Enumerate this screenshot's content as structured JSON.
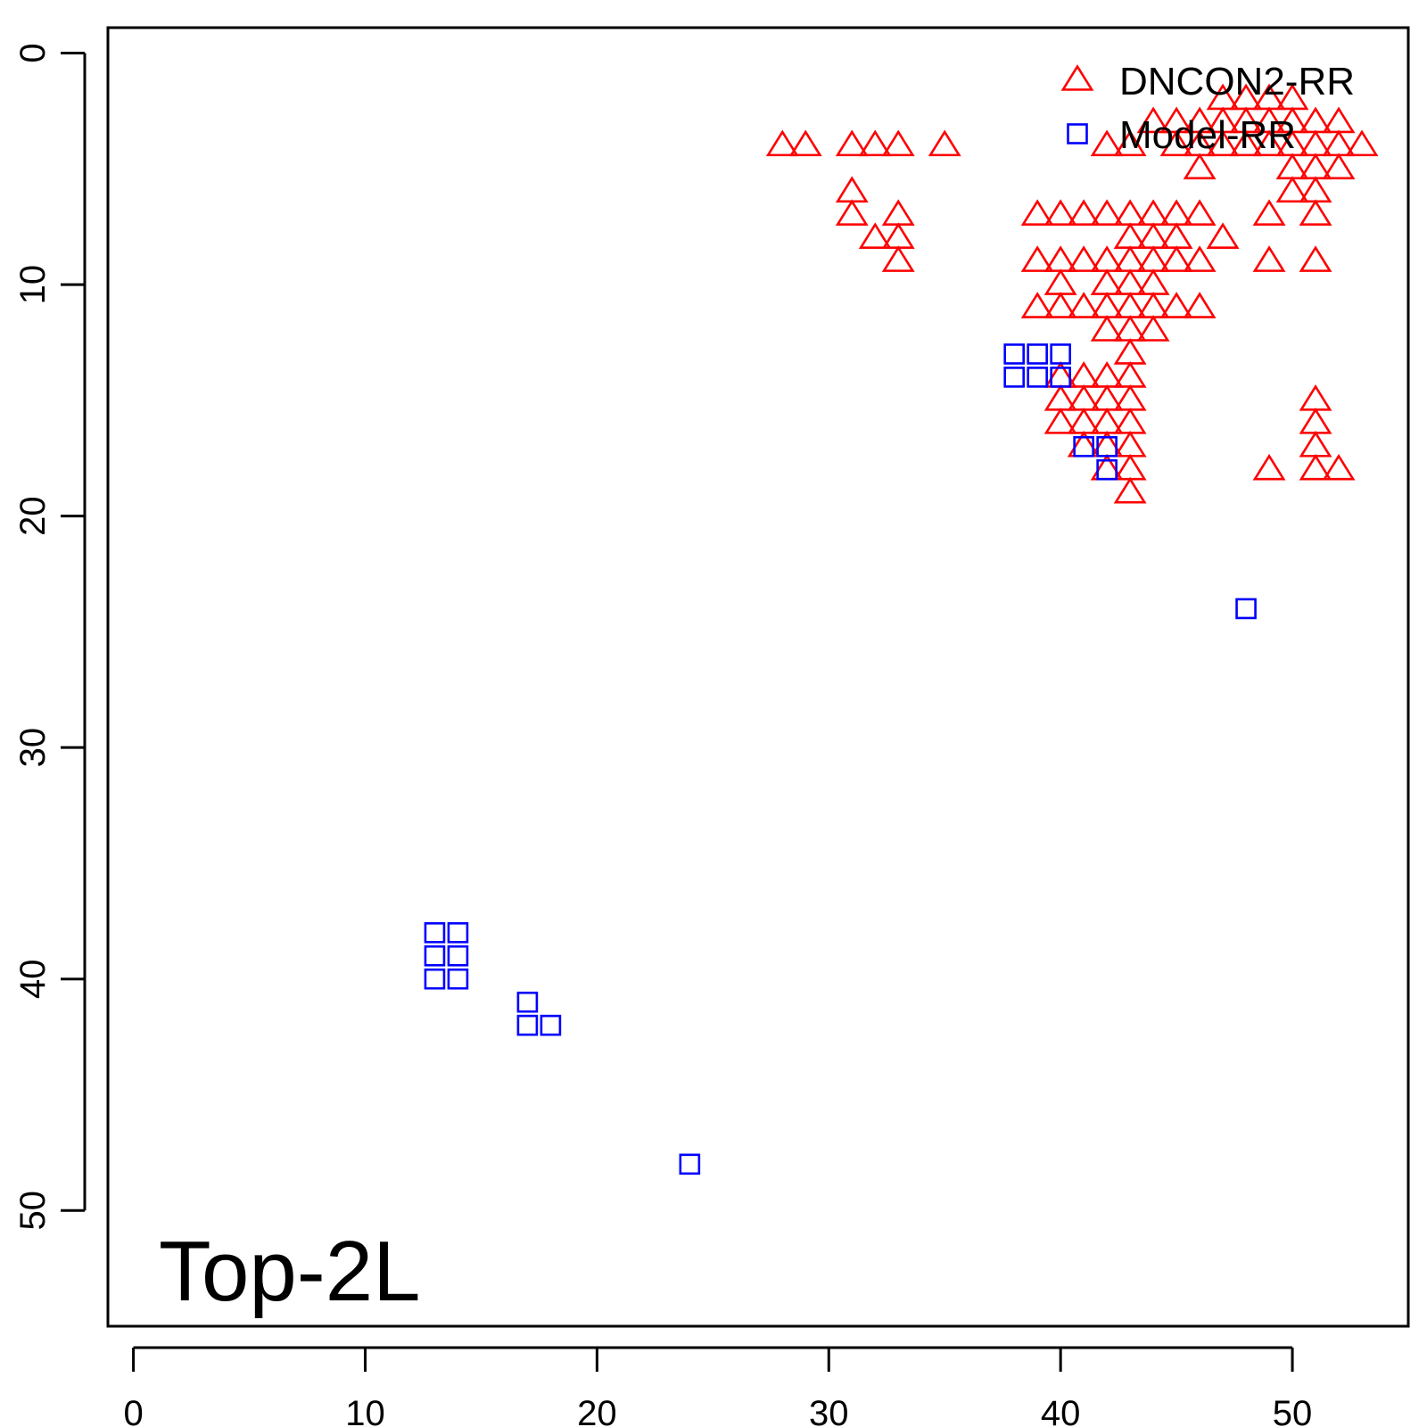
{
  "chart_data": {
    "type": "scatter",
    "title": "",
    "xlabel": "",
    "ylabel": "",
    "xlim": [
      -1.1,
      55
    ],
    "ylim": [
      55,
      -1.1
    ],
    "y_reversed": true,
    "xticks": [
      0,
      10,
      20,
      30,
      40,
      50
    ],
    "yticks": [
      0,
      10,
      20,
      30,
      40,
      50
    ],
    "grid": false,
    "legend_position": "top-right",
    "annotation": "Top-2L",
    "series": [
      {
        "name": "DNCON2-RR",
        "marker": "triangle",
        "color": "#ff0000",
        "points": [
          [
            28,
            4
          ],
          [
            29,
            4
          ],
          [
            31,
            4
          ],
          [
            32,
            4
          ],
          [
            33,
            4
          ],
          [
            35,
            4
          ],
          [
            31,
            6
          ],
          [
            31,
            7
          ],
          [
            32,
            8
          ],
          [
            33,
            7
          ],
          [
            33,
            8
          ],
          [
            33,
            9
          ],
          [
            42,
            4
          ],
          [
            43,
            4
          ],
          [
            44,
            3
          ],
          [
            45,
            3
          ],
          [
            46,
            3
          ],
          [
            47,
            3
          ],
          [
            48,
            3
          ],
          [
            49,
            3
          ],
          [
            50,
            3
          ],
          [
            51,
            3
          ],
          [
            52,
            3
          ],
          [
            45,
            4
          ],
          [
            46,
            4
          ],
          [
            47,
            4
          ],
          [
            48,
            4
          ],
          [
            49,
            4
          ],
          [
            50,
            4
          ],
          [
            51,
            4
          ],
          [
            52,
            4
          ],
          [
            53,
            4
          ],
          [
            47,
            2
          ],
          [
            48,
            2
          ],
          [
            49,
            2
          ],
          [
            50,
            2
          ],
          [
            46,
            5
          ],
          [
            50,
            5
          ],
          [
            51,
            5
          ],
          [
            52,
            5
          ],
          [
            50,
            6
          ],
          [
            51,
            6
          ],
          [
            51,
            7
          ],
          [
            39,
            7
          ],
          [
            40,
            7
          ],
          [
            41,
            7
          ],
          [
            42,
            7
          ],
          [
            43,
            7
          ],
          [
            44,
            7
          ],
          [
            45,
            7
          ],
          [
            46,
            7
          ],
          [
            49,
            7
          ],
          [
            43,
            8
          ],
          [
            44,
            8
          ],
          [
            45,
            8
          ],
          [
            47,
            8
          ],
          [
            39,
            9
          ],
          [
            40,
            9
          ],
          [
            41,
            9
          ],
          [
            42,
            9
          ],
          [
            43,
            9
          ],
          [
            44,
            9
          ],
          [
            45,
            9
          ],
          [
            46,
            9
          ],
          [
            49,
            9
          ],
          [
            51,
            9
          ],
          [
            40,
            10
          ],
          [
            42,
            10
          ],
          [
            43,
            10
          ],
          [
            44,
            10
          ],
          [
            39,
            11
          ],
          [
            40,
            11
          ],
          [
            41,
            11
          ],
          [
            42,
            11
          ],
          [
            43,
            11
          ],
          [
            44,
            11
          ],
          [
            45,
            11
          ],
          [
            46,
            11
          ],
          [
            42,
            12
          ],
          [
            43,
            12
          ],
          [
            44,
            12
          ],
          [
            43,
            13
          ],
          [
            40,
            14
          ],
          [
            41,
            14
          ],
          [
            42,
            14
          ],
          [
            43,
            14
          ],
          [
            40,
            15
          ],
          [
            41,
            15
          ],
          [
            42,
            15
          ],
          [
            43,
            15
          ],
          [
            51,
            15
          ],
          [
            40,
            16
          ],
          [
            41,
            16
          ],
          [
            42,
            16
          ],
          [
            43,
            16
          ],
          [
            51,
            16
          ],
          [
            41,
            17
          ],
          [
            42,
            17
          ],
          [
            43,
            17
          ],
          [
            51,
            17
          ],
          [
            42,
            18
          ],
          [
            43,
            18
          ],
          [
            49,
            18
          ],
          [
            51,
            18
          ],
          [
            52,
            18
          ],
          [
            43,
            19
          ]
        ]
      },
      {
        "name": "Model-RR",
        "marker": "square",
        "color": "#0000ff",
        "points": [
          [
            38,
            13
          ],
          [
            39,
            13
          ],
          [
            40,
            13
          ],
          [
            38,
            14
          ],
          [
            39,
            14
          ],
          [
            40,
            14
          ],
          [
            41,
            17
          ],
          [
            42,
            17
          ],
          [
            42,
            18
          ],
          [
            48,
            24
          ],
          [
            13,
            38
          ],
          [
            14,
            38
          ],
          [
            13,
            39
          ],
          [
            14,
            39
          ],
          [
            13,
            40
          ],
          [
            14,
            40
          ],
          [
            17,
            41
          ],
          [
            17,
            42
          ],
          [
            18,
            42
          ],
          [
            24,
            48
          ]
        ]
      }
    ]
  }
}
